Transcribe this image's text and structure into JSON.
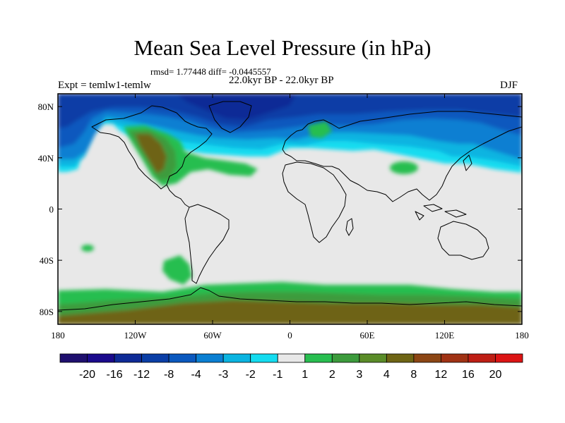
{
  "figure": {
    "title": "Mean Sea Level Pressure (in hPa)",
    "stats": "rmsd= 1.77448 diff= -0.0445557",
    "experiment": "Expt = temlw1-temlw",
    "period": "22.0kyr BP - 22.0kyr BP",
    "season": "DJF"
  },
  "axes": {
    "x_ticks": [
      {
        "lon": -180,
        "label": "180"
      },
      {
        "lon": -120,
        "label": "120W"
      },
      {
        "lon": -60,
        "label": "60W"
      },
      {
        "lon": 0,
        "label": "0"
      },
      {
        "lon": 60,
        "label": "60E"
      },
      {
        "lon": 120,
        "label": "120E"
      },
      {
        "lon": 180,
        "label": "180"
      }
    ],
    "y_ticks": [
      {
        "lat": 80,
        "label": "80N"
      },
      {
        "lat": 40,
        "label": "40N"
      },
      {
        "lat": 0,
        "label": "0"
      },
      {
        "lat": -40,
        "label": "40S"
      },
      {
        "lat": -80,
        "label": "80S"
      }
    ],
    "lon_range": [
      -180,
      180
    ],
    "lat_range": [
      -90,
      90
    ]
  },
  "colorbar": {
    "colors": [
      "#1e0f6e",
      "#1a0a8c",
      "#0e2a96",
      "#0a3ea6",
      "#0a58be",
      "#0a7fd2",
      "#0ab4e1",
      "#14dcf0",
      "#e8e8e8",
      "#28be50",
      "#3c9b3c",
      "#5a8c28",
      "#6e6414",
      "#8c4614",
      "#a03214",
      "#be1e14",
      "#dc1414"
    ],
    "labels": [
      "-20",
      "-16",
      "-12",
      "-8",
      "-4",
      "-3",
      "-2",
      "-1",
      "1",
      "2",
      "3",
      "4",
      "8",
      "12",
      "16",
      "20"
    ]
  },
  "colors": {
    "neutral": "#e8e8e8",
    "low_deep": "#0a3ea6",
    "low_mid": "#0a7fd2",
    "low_light": "#0ab4e1",
    "low_faint": "#14dcf0",
    "high_light": "#28be50",
    "high_mid": "#3c9b3c",
    "high_deep": "#6e6414",
    "coast": "#000000"
  }
}
